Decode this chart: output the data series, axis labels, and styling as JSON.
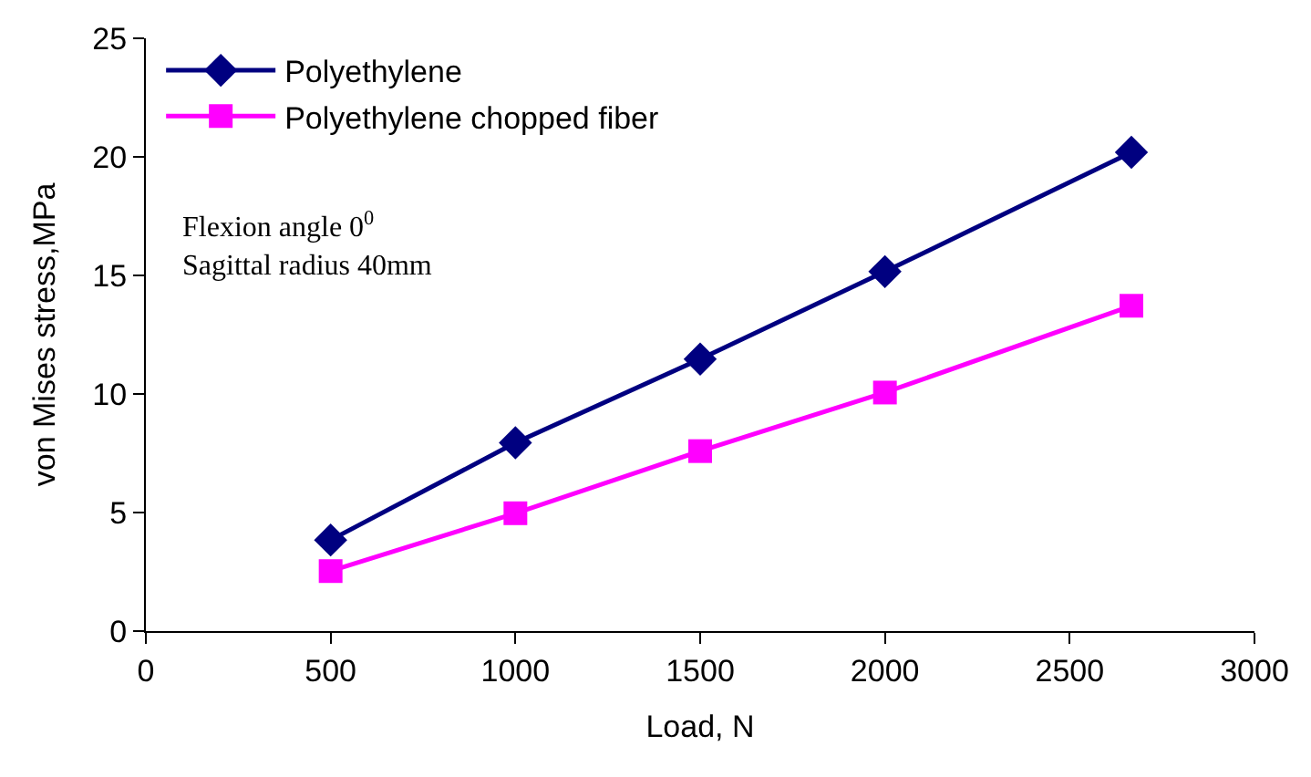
{
  "chart_data": {
    "type": "line",
    "xlabel": "Load, N",
    "ylabel": "von Mises stress,MPa",
    "x": [
      500,
      1000,
      1500,
      2000,
      2667
    ],
    "series": [
      {
        "name": "Polyethylene",
        "color": "#000080",
        "marker": "diamond",
        "values": [
          3.84,
          7.94,
          11.47,
          15.16,
          20.19
        ]
      },
      {
        "name": "Polyethylene chopped fiber",
        "color": "#ff00ff",
        "marker": "square",
        "values": [
          2.53,
          4.97,
          7.59,
          10.06,
          13.72
        ]
      }
    ],
    "xlim": [
      0,
      3000
    ],
    "xticks": [
      0,
      500,
      1000,
      1500,
      2000,
      2500,
      3000
    ],
    "ylim": [
      0,
      25
    ],
    "yticks": [
      0,
      5,
      10,
      15,
      20,
      25
    ],
    "legend": "top left",
    "line_style": "solid",
    "annotations": [
      "Flexion angle 0$^{0}$\nSagittal radius 40mm"
    ]
  }
}
